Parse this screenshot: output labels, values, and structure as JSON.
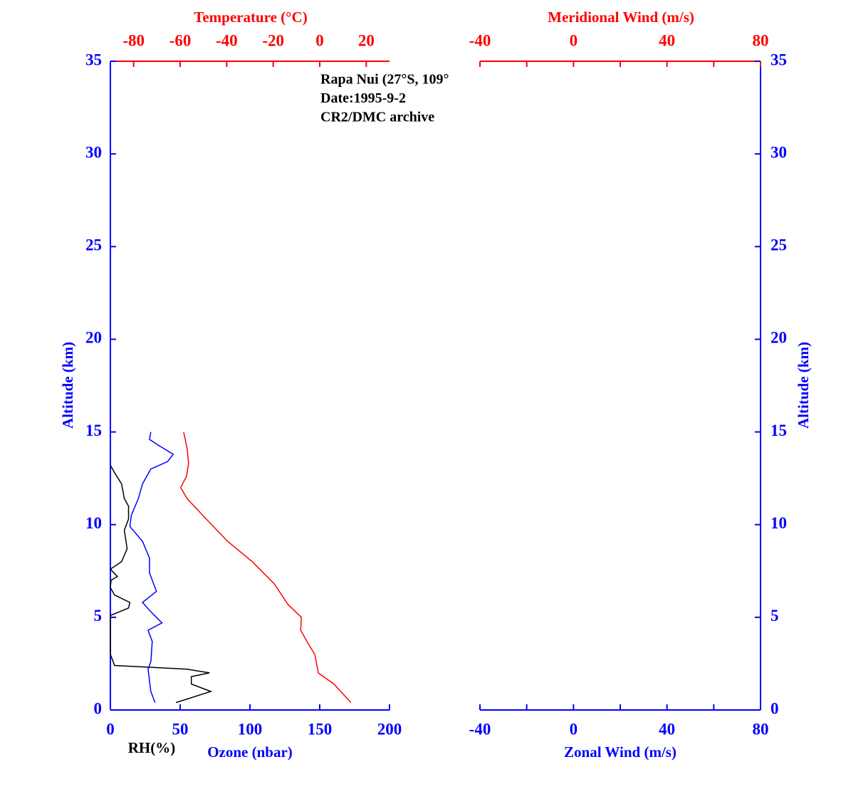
{
  "chart_data": [
    {
      "type": "line",
      "annotation": [
        "Rapa Nui (27°S, 109°",
        "Date:1995-9-2",
        "CR2/DMC archive"
      ],
      "xlabel": "Ozone (nbar)",
      "xlabel_rh": "RH(%)",
      "x2label": "Temperature (°C)",
      "ylabel": "Altitude (km)",
      "xlim": [
        0,
        200
      ],
      "xticks": [
        0,
        50,
        100,
        150,
        200
      ],
      "x2lim": [
        -90,
        30
      ],
      "x2ticks": [
        -80,
        -60,
        -40,
        -20,
        0,
        20
      ],
      "ylim": [
        0,
        35
      ],
      "yticks": [
        0,
        5,
        10,
        15,
        20,
        25,
        30,
        35
      ],
      "axis_color": "#0000ff",
      "axis2_color": "#ff0000",
      "series": [
        {
          "color": "#0000ff",
          "axis": "x",
          "x": [
            32,
            29,
            27,
            29,
            30,
            27,
            37,
            29,
            23,
            33,
            28,
            28,
            23,
            14,
            15,
            20,
            23,
            29,
            41,
            45,
            34,
            28,
            29
          ],
          "y": [
            0.4,
            1.0,
            2.2,
            2.6,
            3.7,
            4.3,
            4.7,
            5.3,
            5.8,
            6.4,
            7.4,
            8.2,
            9.1,
            9.9,
            10.5,
            11.4,
            12.2,
            13.0,
            13.4,
            13.8,
            14.3,
            14.6,
            15.0
          ]
        },
        {
          "color": "#ff0000",
          "axis": "x2",
          "x": [
            13.4,
            6.1,
            -0.6,
            -2.1,
            -4.6,
            -8.2,
            -7.9,
            -13.7,
            -19.5,
            -29.0,
            -39.6,
            -48.8,
            -57,
            -59.8,
            -57.3,
            -56.4,
            -57,
            -58.5
          ],
          "y": [
            0.4,
            1.4,
            2.0,
            3.0,
            3.5,
            4.3,
            5.0,
            5.7,
            6.8,
            8.0,
            9.1,
            10.3,
            11.4,
            12.0,
            12.6,
            13.3,
            14.1,
            15.0
          ]
        },
        {
          "color": "#000000",
          "axis": "x",
          "x": [
            47,
            72,
            58,
            58,
            71,
            55,
            3,
            0,
            0,
            0,
            13,
            14,
            3,
            0,
            0.5,
            5,
            0,
            8,
            12,
            10,
            13,
            13,
            10,
            8,
            3,
            0
          ],
          "y": [
            0.4,
            1.0,
            1.4,
            1.8,
            2.0,
            2.2,
            2.4,
            3.0,
            3.2,
            5.1,
            5.5,
            5.8,
            6.2,
            6.6,
            7.0,
            7.2,
            7.6,
            8.0,
            8.7,
            9.7,
            10.3,
            11.0,
            11.4,
            12.2,
            12.8,
            13.2
          ]
        }
      ]
    },
    {
      "type": "line",
      "xlabel": "Zonal Wind (m/s)",
      "x2label": "Meridional Wind (m/s)",
      "ylabel": "Altitude (km)",
      "xlim": [
        -40,
        80
      ],
      "xticks": [
        -40,
        0,
        40,
        80
      ],
      "xminor": [
        -20,
        20,
        60
      ],
      "x2lim": [
        -40,
        80
      ],
      "x2ticks": [
        -40,
        0,
        40,
        80
      ],
      "x2minor": [
        -20,
        20,
        60
      ],
      "ylim": [
        0,
        35
      ],
      "yticks": [
        0,
        5,
        10,
        15,
        20,
        25,
        30,
        35
      ],
      "axis_color": "#0000ff",
      "axis2_color": "#ff0000"
    }
  ]
}
